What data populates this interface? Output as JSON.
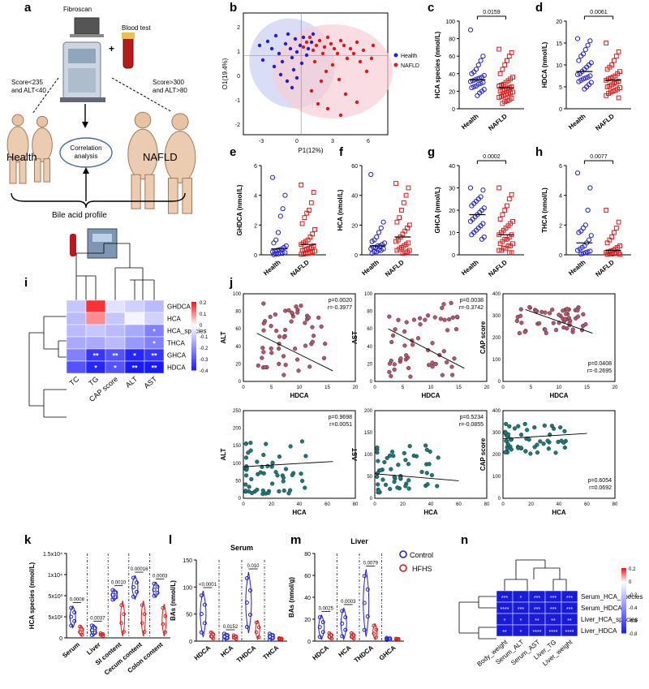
{
  "panel_letters": [
    "a",
    "b",
    "c",
    "d",
    "e",
    "f",
    "g",
    "h",
    "i",
    "j",
    "k",
    "l",
    "m",
    "n"
  ],
  "panel_a": {
    "fibroscan": "Fibroscan",
    "plus": "+",
    "blood_test": "Blood test",
    "left_criteria_1": "Score<235",
    "left_criteria_2": "and ALT<40",
    "right_criteria_1": "Score>300",
    "right_criteria_2": "and ALT>80",
    "health": "Health",
    "nafld": "NAFLD",
    "correlation_1": "Correlation",
    "correlation_2": "analysis",
    "bile_acid": "Bile acid profile"
  },
  "panel_b": {
    "xlabel": "P1(12%)",
    "ylabel": "O1(19.4%)",
    "xticks": [
      "-3",
      "0",
      "3",
      "6"
    ],
    "yticks": [
      "-2",
      "-1",
      "0",
      "1",
      "2"
    ],
    "legend": [
      "Health",
      "NAFLD"
    ]
  },
  "colors": {
    "health": "#1f1fd6",
    "nafld": "#e01818",
    "heat_pos": "#e8101e",
    "heat_neg": "#1a1adb",
    "pink": "#b8546c",
    "teal": "#1a7a7a"
  },
  "chart_data": [
    {
      "panel": "c",
      "type": "scatter",
      "ylabel": "HCA species (nmol/L)",
      "categories": [
        "Health",
        "NAFLD"
      ],
      "ylim": [
        0,
        100
      ],
      "yticks": [
        "0",
        "20",
        "40",
        "60",
        "80",
        "100"
      ],
      "p": "0.0159",
      "series": [
        {
          "name": "Health",
          "values": [
            90,
            60,
            55,
            50,
            45,
            42,
            40,
            38,
            36,
            35,
            34,
            33,
            32,
            31,
            30,
            29,
            28,
            26,
            25,
            24,
            22,
            20,
            18,
            15
          ]
        },
        {
          "name": "NAFLD",
          "values": [
            68,
            64,
            60,
            55,
            50,
            45,
            40,
            36,
            34,
            32,
            30,
            28,
            27,
            26,
            25,
            24,
            23,
            22,
            21,
            20,
            19,
            18,
            17,
            16,
            15,
            14,
            13,
            12,
            10,
            9,
            8,
            6
          ]
        }
      ]
    },
    {
      "panel": "d",
      "type": "scatter",
      "ylabel": "HDCA (nmol/L)",
      "categories": [
        "Health",
        "NAFLD"
      ],
      "ylim": [
        0,
        20
      ],
      "yticks": [
        "0",
        "5",
        "10",
        "15",
        "20"
      ],
      "p": "0.0061",
      "series": [
        {
          "name": "Health",
          "values": [
            16,
            15.5,
            14.5,
            13.5,
            12.5,
            12,
            11,
            10.5,
            10,
            9.5,
            9,
            8.5,
            8,
            7.8,
            7.5,
            7.2,
            7,
            6.8,
            6.5,
            6.2,
            6,
            5.5,
            5,
            4.5
          ]
        },
        {
          "name": "NAFLD",
          "values": [
            15,
            13,
            12,
            11,
            10,
            9.5,
            9,
            8.5,
            8,
            7.5,
            7.2,
            7,
            6.8,
            6.5,
            6.3,
            6,
            5.8,
            5.5,
            5.2,
            5,
            4.8,
            4.5,
            4.2,
            4,
            3.8,
            3.5,
            3,
            2.5
          ]
        }
      ]
    },
    {
      "panel": "e",
      "type": "scatter",
      "ylabel": "GHDCA (nmol/L)",
      "categories": [
        "Health",
        "NAFLD"
      ],
      "ylim": [
        0,
        6
      ],
      "yticks": [
        "0",
        "2",
        "4",
        "6"
      ],
      "series": [
        {
          "name": "Health",
          "values": [
            5.2,
            4,
            3.1,
            2.6,
            1.5,
            1,
            0.8,
            0.6,
            0.5,
            0.4,
            0.35,
            0.3,
            0.25,
            0.2,
            0.15,
            0.1,
            0.1,
            0.05,
            0.05,
            0.02
          ]
        },
        {
          "name": "NAFLD",
          "values": [
            4.7,
            4.2,
            3.5,
            3,
            2.8,
            2.5,
            2.1,
            1.7,
            1.4,
            1.2,
            1,
            0.9,
            0.8,
            0.7,
            0.6,
            0.5,
            0.45,
            0.4,
            0.35,
            0.3,
            0.25,
            0.2,
            0.15,
            0.1,
            0.08,
            0.05,
            0.03
          ]
        }
      ]
    },
    {
      "panel": "f",
      "type": "scatter",
      "ylabel": "HCA (nmol/L)",
      "categories": [
        "Health",
        "NAFLD"
      ],
      "ylim": [
        0,
        60
      ],
      "yticks": [
        "0",
        "20",
        "40",
        "60"
      ],
      "series": [
        {
          "name": "Health",
          "values": [
            54,
            22,
            18,
            15,
            12,
            10,
            9,
            8,
            7,
            6,
            6,
            5,
            5,
            4,
            4,
            3,
            3,
            2,
            2,
            1
          ]
        },
        {
          "name": "NAFLD",
          "values": [
            48,
            45,
            40,
            35,
            30,
            25,
            22,
            20,
            18,
            16,
            14,
            12,
            10,
            9,
            8,
            7,
            6,
            5,
            4,
            3,
            3,
            2,
            2,
            1
          ]
        }
      ]
    },
    {
      "panel": "g",
      "type": "scatter",
      "ylabel": "GHCA (nmol/L)",
      "categories": [
        "Health",
        "NAFLD"
      ],
      "ylim": [
        0,
        40
      ],
      "yticks": [
        "0",
        "10",
        "20",
        "30",
        "40"
      ],
      "p": "0.0002",
      "series": [
        {
          "name": "Health",
          "values": [
            30,
            29,
            26,
            25,
            24,
            23,
            22,
            21,
            20,
            19,
            18,
            17,
            16,
            15,
            14,
            13,
            12,
            11,
            10,
            9,
            8,
            7
          ]
        },
        {
          "name": "NAFLD",
          "values": [
            30,
            27,
            25,
            22,
            20,
            18,
            16,
            15,
            14,
            13,
            12,
            11,
            10,
            9,
            9,
            8,
            7,
            7,
            6,
            5,
            5,
            4,
            4,
            3,
            3,
            2,
            2,
            1,
            1
          ]
        }
      ]
    },
    {
      "panel": "h",
      "type": "scatter",
      "ylabel": "THCA (nmol/L)",
      "categories": [
        "Health",
        "NAFLD"
      ],
      "ylim": [
        0,
        6
      ],
      "yticks": [
        "0",
        "2",
        "4",
        "6"
      ],
      "p": "0.0077",
      "series": [
        {
          "name": "Health",
          "values": [
            5.5,
            4.5,
            3,
            2,
            1.8,
            1.6,
            1.5,
            1.3,
            1,
            0.8,
            0.6,
            0.5,
            0.4,
            0.3,
            0.25,
            0.2,
            0.15,
            0.1,
            0.05
          ]
        },
        {
          "name": "NAFLD",
          "values": [
            3,
            2.2,
            1.8,
            1.5,
            1.2,
            1,
            0.8,
            0.6,
            0.5,
            0.4,
            0.3,
            0.25,
            0.2,
            0.15,
            0.1,
            0.1,
            0.08,
            0.05,
            0.05,
            0.03,
            0.02
          ]
        }
      ]
    },
    {
      "panel": "i",
      "type": "heatmap",
      "rows": [
        "GHDCA",
        "HCA",
        "HCA_species",
        "THCA",
        "GHCA",
        "HDCA"
      ],
      "cols": [
        "TC",
        "TG",
        "CAP score",
        "ALT",
        "AST"
      ],
      "clim": [
        -0.4,
        0.2
      ],
      "cticks": [
        "0.2",
        "0.1",
        "0",
        "-0.1",
        "-0.2",
        "-0.3",
        "-0.4"
      ],
      "values": [
        [
          -0.1,
          0.18,
          -0.05,
          -0.08,
          -0.12
        ],
        [
          -0.12,
          0.1,
          -0.1,
          -0.02,
          -0.08
        ],
        [
          -0.12,
          -0.1,
          -0.12,
          -0.15,
          -0.22
        ],
        [
          -0.15,
          -0.15,
          -0.12,
          -0.18,
          -0.22
        ],
        [
          -0.22,
          -0.35,
          -0.3,
          -0.38,
          -0.35
        ],
        [
          -0.3,
          -0.38,
          -0.3,
          -0.4,
          -0.4
        ]
      ],
      "stars": [
        [
          "",
          "",
          "",
          "",
          ""
        ],
        [
          "",
          "",
          "",
          "",
          ""
        ],
        [
          "",
          "",
          "",
          "",
          "*"
        ],
        [
          "",
          "",
          "",
          "",
          "*"
        ],
        [
          "",
          "**",
          "**",
          "*",
          "**"
        ],
        [
          "",
          "*",
          "*",
          "**",
          "**"
        ]
      ]
    },
    {
      "panel": "j1",
      "type": "scatter",
      "xlabel": "HDCA",
      "ylabel": "ALT",
      "xlim": [
        0,
        20
      ],
      "ylim": [
        0,
        100
      ],
      "xticks": [
        "0",
        "5",
        "10",
        "15",
        "20"
      ],
      "yticks": [
        "0",
        "20",
        "40",
        "60",
        "80",
        "100"
      ],
      "p": "p=0.0020",
      "r": "r=-0.3977"
    },
    {
      "panel": "j2",
      "type": "scatter",
      "xlabel": "HDCA",
      "ylabel": "AST",
      "xlim": [
        0,
        20
      ],
      "ylim": [
        0,
        100
      ],
      "xticks": [
        "0",
        "5",
        "10",
        "15",
        "20"
      ],
      "yticks": [
        "0",
        "20",
        "40",
        "60",
        "80",
        "100"
      ],
      "p": "p=0.0038",
      "r": "r=-0.3742"
    },
    {
      "panel": "j3",
      "type": "scatter",
      "xlabel": "HDCA",
      "ylabel": "CAP score",
      "xlim": [
        0,
        20
      ],
      "ylim": [
        0,
        400
      ],
      "xticks": [
        "0",
        "5",
        "10",
        "15",
        "20"
      ],
      "yticks": [
        "0",
        "100",
        "200",
        "300",
        "400"
      ],
      "p": "p=0.0408",
      "r": "r=-0.2695"
    },
    {
      "panel": "j4",
      "type": "scatter",
      "xlabel": "HCA",
      "ylabel": "ALT",
      "xlim": [
        0,
        80
      ],
      "ylim": [
        0,
        250
      ],
      "xticks": [
        "0",
        "20",
        "40",
        "60",
        "80"
      ],
      "yticks": [
        "0",
        "50",
        "100",
        "150",
        "200",
        "250"
      ],
      "p": "p=0.9698",
      "r": "r=0.0051"
    },
    {
      "panel": "j5",
      "type": "scatter",
      "xlabel": "HCA",
      "ylabel": "AST",
      "xlim": [
        0,
        80
      ],
      "ylim": [
        0,
        200
      ],
      "xticks": [
        "0",
        "20",
        "40",
        "60",
        "80"
      ],
      "yticks": [
        "0",
        "50",
        "100",
        "150",
        "200"
      ],
      "p": "p=0.5234",
      "r": "r=-0.0855"
    },
    {
      "panel": "j6",
      "type": "scatter",
      "xlabel": "HCA",
      "ylabel": "CAP score",
      "xlim": [
        0,
        80
      ],
      "ylim": [
        0,
        400
      ],
      "xticks": [
        "0",
        "20",
        "40",
        "60",
        "80"
      ],
      "yticks": [
        "0",
        "100",
        "200",
        "300",
        "400"
      ],
      "p": "p=0.6054",
      "r": "r=0.0692"
    },
    {
      "panel": "k",
      "type": "violin",
      "ylabel": "HCA species (nmol/L)",
      "categories": [
        "Serum",
        "Liver",
        "SI content",
        "Cecum content",
        "Colon content"
      ],
      "yticks": [
        "0",
        "5x10²",
        "5x10³",
        "1x10⁴",
        "1.5x10⁴"
      ],
      "pvalues": [
        "0.0008",
        "0.0037",
        "0.0010",
        "0.00016",
        "0.0003"
      ]
    },
    {
      "panel": "l",
      "type": "violin",
      "title": "Serum",
      "ylabel": "BAs (nmol/L)",
      "categories": [
        "HDCA",
        "HCA",
        "THDCA",
        "THCA"
      ],
      "yticks": [
        "0",
        "50",
        "100",
        "150"
      ],
      "pvalues": [
        "<0.0001",
        "0.0152",
        "0.010"
      ]
    },
    {
      "panel": "m",
      "type": "violin",
      "title": "Liver",
      "ylabel": "BAs (nmol/g)",
      "categories": [
        "HDCA",
        "HCA",
        "THDCA",
        "GHCA"
      ],
      "yticks": [
        "0",
        "20",
        "40",
        "60",
        "80"
      ],
      "pvalues": [
        "0.0025",
        "0.0003",
        "0.0079"
      ],
      "legend": [
        "Control",
        "HFHS"
      ]
    },
    {
      "panel": "n",
      "type": "heatmap",
      "rows": [
        "Serum_HCA_species",
        "Serum_HDCA",
        "Liver_HCA_species",
        "Liver_HDCA"
      ],
      "cols": [
        "Body_weight",
        "Serum_ALT",
        "Serum_AST",
        "Liver_TG",
        "Liver_weight"
      ],
      "clim": [
        -0.8,
        0.2
      ],
      "cticks": [
        "0.2",
        "0",
        "-0.2",
        "-0.4",
        "-0.6",
        "-0.8"
      ],
      "stars": [
        [
          "***",
          "*",
          "***",
          "***",
          "***"
        ],
        [
          "****",
          "***",
          "***",
          "***",
          "***"
        ],
        [
          "*",
          "*",
          "**",
          "**",
          "**"
        ],
        [
          "**",
          "*",
          "****",
          "****",
          "****"
        ]
      ]
    }
  ]
}
